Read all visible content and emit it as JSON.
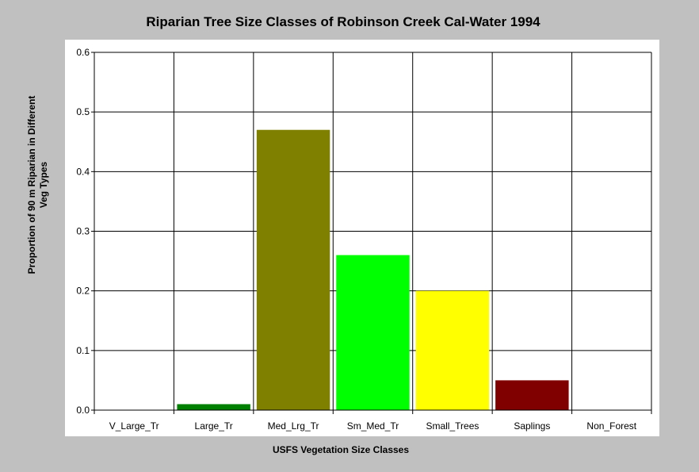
{
  "chart_data": {
    "type": "bar",
    "title": "Riparian Tree Size Classes of Robinson Creek Cal-Water 1994",
    "xlabel": "USFS Vegetation Size Classes",
    "ylabel_lines": [
      "Proportion of 90 m Riparian in Different",
      "Veg Types"
    ],
    "categories": [
      "V_Large_Tr",
      "Large_Tr",
      "Med_Lrg_Tr",
      "Sm_Med_Tr",
      "Small_Trees",
      "Saplings",
      "Non_Forest"
    ],
    "values": [
      0.0,
      0.01,
      0.47,
      0.26,
      0.2,
      0.05,
      0.0
    ],
    "colors": [
      "#008000",
      "#008000",
      "#808000",
      "#00ff00",
      "#ffff00",
      "#800000",
      "#808080"
    ],
    "ylim": [
      0,
      0.6
    ],
    "yticks": [
      "0.0",
      "0.1",
      "0.2",
      "0.3",
      "0.4",
      "0.5",
      "0.6"
    ],
    "grid": true,
    "legend": "none"
  }
}
